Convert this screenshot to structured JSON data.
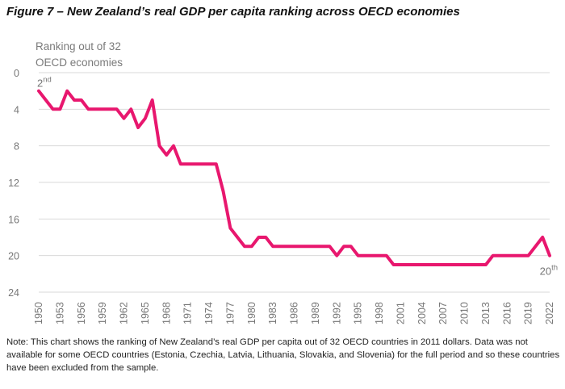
{
  "title": "Figure 7 – New Zealand’s real GDP per capita ranking across OECD economies",
  "note": "Note: This chart shows the ranking of New Zealand’s real GDP per capita out of 32 OECD countries in 2011 dollars. Data was not available for some OECD countries (Estonia, Czechia, Latvia, Lithuania, Slovakia, and Slovenia) for the full period and so these countries have been excluded from the sample.",
  "colors": {
    "line": "#e8176e",
    "grid": "#d9d9d9",
    "text_muted": "#7a7a7a"
  },
  "chart_data": {
    "type": "line",
    "ylabel_lines": [
      "Ranking out of 32",
      "OECD economies"
    ],
    "ylim": [
      0,
      24
    ],
    "y_inverted": true,
    "y_ticks": [
      0,
      4,
      8,
      12,
      16,
      20,
      24
    ],
    "xlim": [
      1950,
      2022
    ],
    "x_ticks": [
      1950,
      1953,
      1956,
      1959,
      1962,
      1965,
      1968,
      1971,
      1974,
      1977,
      1980,
      1983,
      1986,
      1989,
      1992,
      1995,
      1998,
      2001,
      2004,
      2007,
      2010,
      2013,
      2016,
      2019,
      2022
    ],
    "grid": "horizontal",
    "annotations": [
      {
        "base": "2",
        "sup": "nd",
        "x": 1950,
        "y": 2
      },
      {
        "base": "20",
        "sup": "th",
        "x": 2022,
        "y": 20
      }
    ],
    "series": [
      {
        "x": [
          1950,
          1951,
          1952,
          1953,
          1954,
          1955,
          1956,
          1957,
          1958,
          1959,
          1960,
          1961,
          1962,
          1963,
          1964,
          1965,
          1966,
          1967,
          1968,
          1969,
          1970,
          1971,
          1972,
          1973,
          1974,
          1975,
          1976,
          1977,
          1978,
          1979,
          1980,
          1981,
          1982,
          1983,
          1984,
          1985,
          1986,
          1987,
          1988,
          1989,
          1990,
          1991,
          1992,
          1993,
          1994,
          1995,
          1996,
          1997,
          1998,
          1999,
          2000,
          2001,
          2002,
          2003,
          2004,
          2005,
          2006,
          2007,
          2008,
          2009,
          2010,
          2011,
          2012,
          2013,
          2014,
          2015,
          2016,
          2017,
          2018,
          2019,
          2020,
          2021,
          2022
        ],
        "values": [
          2,
          3,
          4,
          4,
          2,
          3,
          3,
          4,
          4,
          4,
          4,
          4,
          5,
          4,
          6,
          5,
          3,
          8,
          9,
          8,
          10,
          10,
          10,
          10,
          10,
          10,
          13,
          17,
          18,
          19,
          19,
          18,
          18,
          19,
          19,
          19,
          19,
          19,
          19,
          19,
          19,
          19,
          20,
          19,
          19,
          20,
          20,
          20,
          20,
          20,
          21,
          21,
          21,
          21,
          21,
          21,
          21,
          21,
          21,
          21,
          21,
          21,
          21,
          21,
          20,
          20,
          20,
          20,
          20,
          20,
          19,
          18,
          20
        ]
      }
    ]
  }
}
